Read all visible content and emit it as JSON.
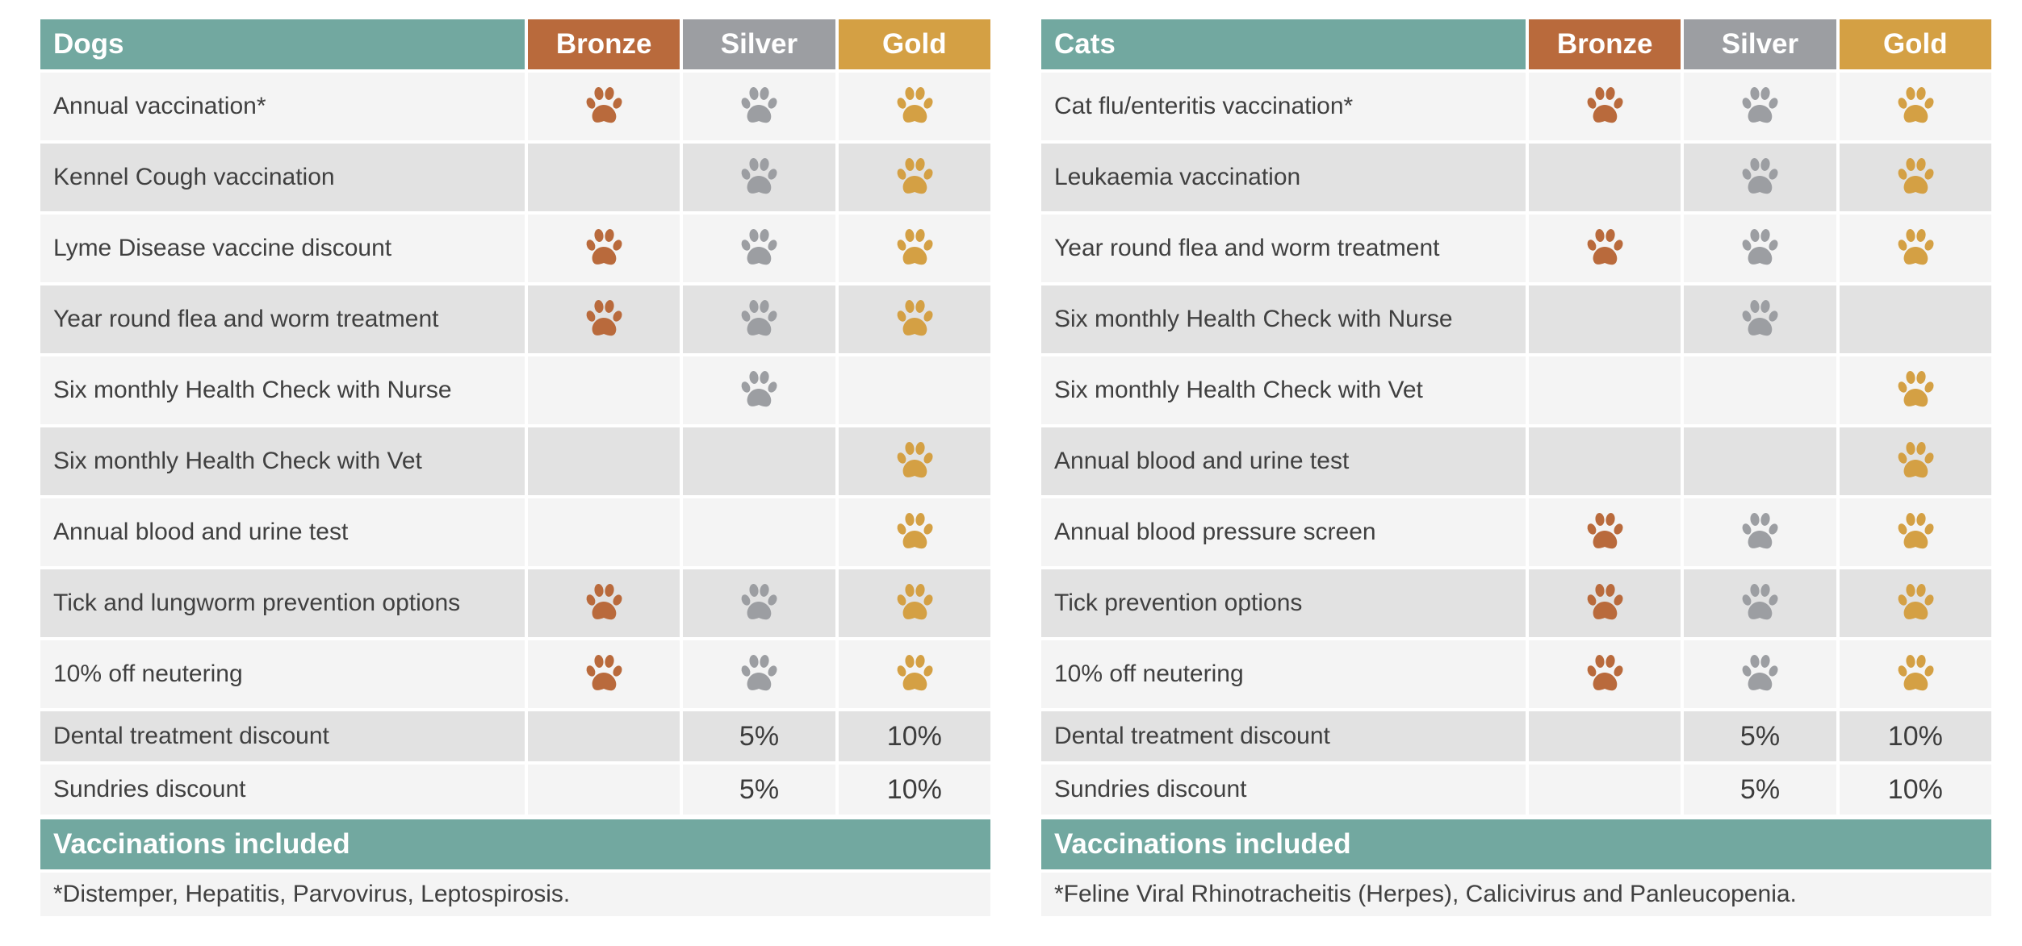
{
  "colors": {
    "header_teal": "#72a8a0",
    "bronze": "#b96a3c",
    "silver": "#9c9ea2",
    "gold": "#d4a044"
  },
  "icon": "paw-print-icon",
  "dogs": {
    "title": "Dogs",
    "tiers": [
      "Bronze",
      "Silver",
      "Gold"
    ],
    "rows": [
      {
        "label": "Annual vaccination*",
        "bronze": true,
        "silver": true,
        "gold": true
      },
      {
        "label": "Kennel Cough vaccination",
        "bronze": false,
        "silver": true,
        "gold": true
      },
      {
        "label": "Lyme Disease vaccine discount",
        "bronze": true,
        "silver": true,
        "gold": true
      },
      {
        "label": "Year round flea and worm treatment",
        "bronze": true,
        "silver": true,
        "gold": true
      },
      {
        "label": "Six monthly Health Check with Nurse",
        "bronze": false,
        "silver": true,
        "gold": false
      },
      {
        "label": "Six monthly Health Check with Vet",
        "bronze": false,
        "silver": false,
        "gold": true
      },
      {
        "label": "Annual blood and urine test",
        "bronze": false,
        "silver": false,
        "gold": true
      },
      {
        "label": "Tick and lungworm prevention options",
        "bronze": true,
        "silver": true,
        "gold": true
      },
      {
        "label": "10% off neutering",
        "bronze": true,
        "silver": true,
        "gold": true
      }
    ],
    "discounts": [
      {
        "label": "Dental treatment discount",
        "bronze": "",
        "silver": "5%",
        "gold": "10%"
      },
      {
        "label": "Sundries discount",
        "bronze": "",
        "silver": "5%",
        "gold": "10%"
      }
    ],
    "footer_title": "Vaccinations included",
    "footer_text": "*Distemper, Hepatitis, Parvovirus, Leptospirosis."
  },
  "cats": {
    "title": "Cats",
    "tiers": [
      "Bronze",
      "Silver",
      "Gold"
    ],
    "rows": [
      {
        "label": "Cat flu/enteritis vaccination*",
        "bronze": true,
        "silver": true,
        "gold": true
      },
      {
        "label": "Leukaemia vaccination",
        "bronze": false,
        "silver": true,
        "gold": true
      },
      {
        "label": "Year round flea and worm treatment",
        "bronze": true,
        "silver": true,
        "gold": true
      },
      {
        "label": "Six monthly Health Check with Nurse",
        "bronze": false,
        "silver": true,
        "gold": false
      },
      {
        "label": "Six monthly Health Check with Vet",
        "bronze": false,
        "silver": false,
        "gold": true
      },
      {
        "label": "Annual blood and urine test",
        "bronze": false,
        "silver": false,
        "gold": true
      },
      {
        "label": "Annual blood pressure screen",
        "bronze": true,
        "silver": true,
        "gold": true
      },
      {
        "label": "Tick prevention options",
        "bronze": true,
        "silver": true,
        "gold": true
      },
      {
        "label": "10% off neutering",
        "bronze": true,
        "silver": true,
        "gold": true
      }
    ],
    "discounts": [
      {
        "label": "Dental treatment discount",
        "bronze": "",
        "silver": "5%",
        "gold": "10%"
      },
      {
        "label": "Sundries discount",
        "bronze": "",
        "silver": "5%",
        "gold": "10%"
      }
    ],
    "footer_title": "Vaccinations included",
    "footer_text": "*Feline Viral Rhinotracheitis (Herpes), Calicivirus and Panleucopenia."
  }
}
